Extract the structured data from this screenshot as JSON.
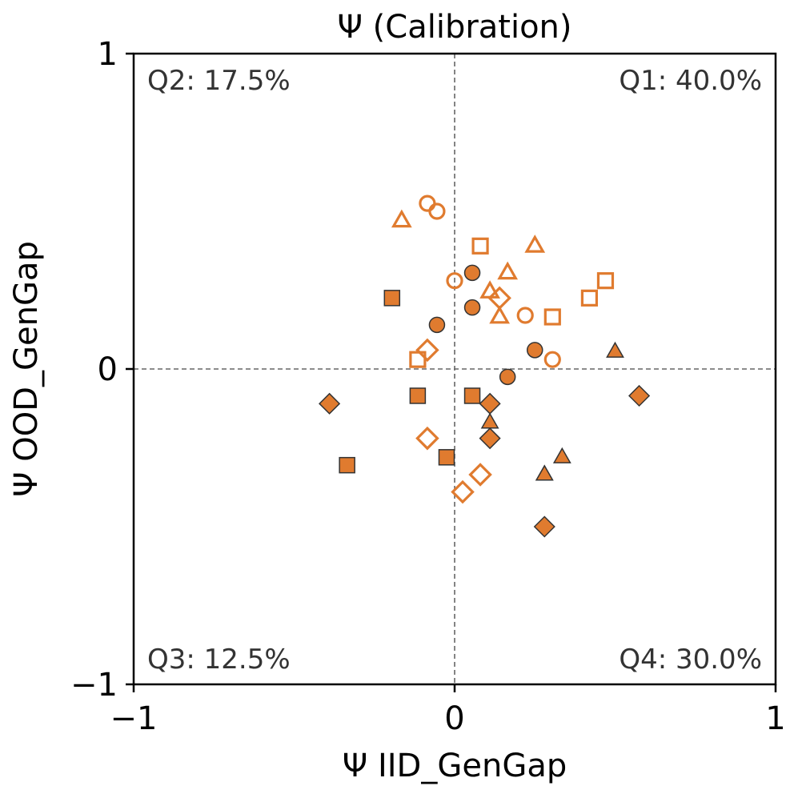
{
  "chart_data": {
    "type": "scatter",
    "title": "Ψ (Calibration)",
    "xlabel": "Ψ IID_GenGap",
    "ylabel": "Ψ OOD_GenGap",
    "xlim": [
      -1,
      1
    ],
    "ylim": [
      -1,
      1
    ],
    "xticks": [
      {
        "value": -1,
        "label": "−1"
      },
      {
        "value": 0,
        "label": "0"
      },
      {
        "value": 1,
        "label": "1"
      }
    ],
    "yticks": [
      {
        "value": -1,
        "label": "−1"
      },
      {
        "value": 0,
        "label": "0"
      },
      {
        "value": 1,
        "label": "1"
      }
    ],
    "grid": false,
    "reference_lines": {
      "x": 0,
      "y": 0,
      "style": "dashed"
    },
    "quadrant_labels": [
      {
        "id": "q2",
        "text": "Q2: 17.5%",
        "position": "top-left"
      },
      {
        "id": "q1",
        "text": "Q1: 40.0%",
        "position": "top-right"
      },
      {
        "id": "q3",
        "text": "Q3: 12.5%",
        "position": "bottom-left"
      },
      {
        "id": "q4",
        "text": "Q4: 30.0%",
        "position": "bottom-right"
      }
    ],
    "color": "#e07b2f",
    "edge_color": "#333333",
    "series": [
      {
        "name": "circle-open",
        "marker": "circle",
        "filled": false,
        "points": [
          [
            -0.085,
            0.525
          ],
          [
            -0.055,
            0.5
          ],
          [
            0.0,
            0.28
          ],
          [
            0.22,
            0.17
          ],
          [
            0.305,
            0.03
          ]
        ]
      },
      {
        "name": "circle-filled",
        "marker": "circle",
        "filled": true,
        "points": [
          [
            0.055,
            0.305
          ],
          [
            0.055,
            0.195
          ],
          [
            -0.055,
            0.14
          ],
          [
            0.25,
            0.06
          ],
          [
            0.165,
            -0.025
          ]
        ]
      },
      {
        "name": "square-open",
        "marker": "square",
        "filled": false,
        "points": [
          [
            0.08,
            0.39
          ],
          [
            0.47,
            0.28
          ],
          [
            0.42,
            0.225
          ],
          [
            0.305,
            0.165
          ],
          [
            -0.115,
            0.03
          ]
        ]
      },
      {
        "name": "square-filled",
        "marker": "square",
        "filled": true,
        "points": [
          [
            -0.195,
            0.225
          ],
          [
            -0.115,
            -0.085
          ],
          [
            0.055,
            -0.085
          ],
          [
            -0.025,
            -0.28
          ],
          [
            -0.335,
            -0.305
          ]
        ]
      },
      {
        "name": "triangle-open",
        "marker": "triangle",
        "filled": false,
        "points": [
          [
            -0.165,
            0.47
          ],
          [
            0.25,
            0.39
          ],
          [
            0.165,
            0.305
          ],
          [
            0.11,
            0.245
          ],
          [
            0.14,
            0.165
          ]
        ]
      },
      {
        "name": "triangle-filled",
        "marker": "triangle",
        "filled": true,
        "points": [
          [
            0.5,
            0.055
          ],
          [
            0.11,
            -0.17
          ],
          [
            0.335,
            -0.28
          ],
          [
            0.28,
            -0.335
          ],
          [
            0.28,
            -0.335
          ]
        ]
      },
      {
        "name": "diamond-open",
        "marker": "diamond",
        "filled": false,
        "points": [
          [
            0.14,
            0.225
          ],
          [
            -0.085,
            0.06
          ],
          [
            -0.085,
            -0.22
          ],
          [
            0.08,
            -0.335
          ],
          [
            0.025,
            -0.39
          ]
        ]
      },
      {
        "name": "diamond-filled",
        "marker": "diamond",
        "filled": true,
        "points": [
          [
            -0.39,
            -0.11
          ],
          [
            0.575,
            -0.085
          ],
          [
            0.11,
            -0.11
          ],
          [
            0.11,
            -0.22
          ],
          [
            0.28,
            -0.5
          ]
        ]
      }
    ]
  }
}
